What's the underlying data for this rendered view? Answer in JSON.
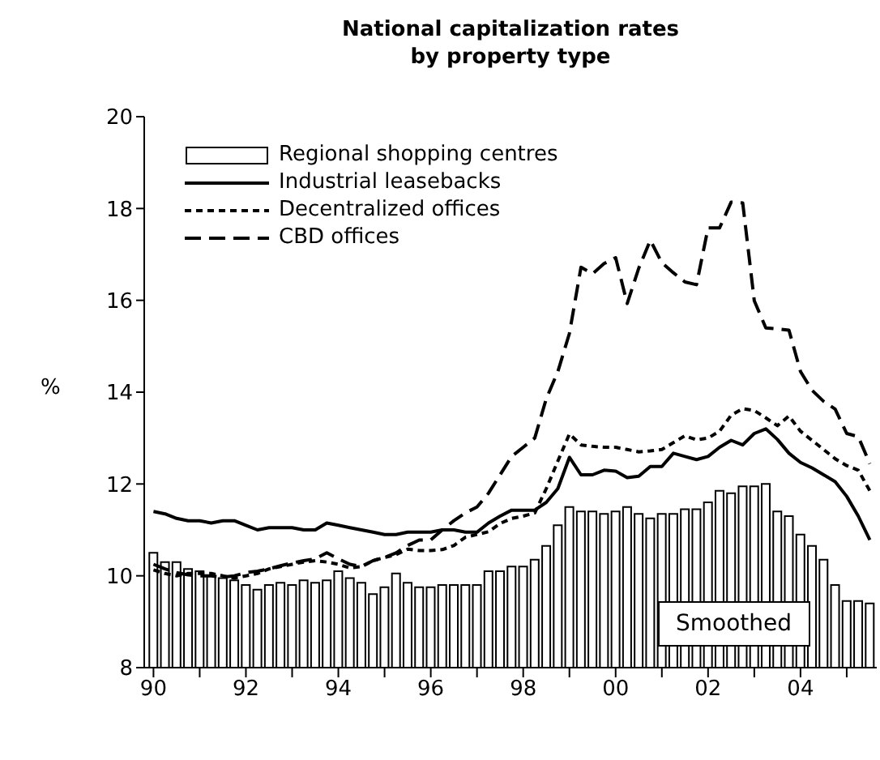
{
  "chart_data": {
    "type": "bar",
    "title": "National capitalization rates\nby property type",
    "ylabel": "%",
    "x": [
      1990,
      1990.25,
      1990.5,
      1990.75,
      1991,
      1991.25,
      1991.5,
      1991.75,
      1992,
      1992.25,
      1992.5,
      1992.75,
      1993,
      1993.25,
      1993.5,
      1993.75,
      1994,
      1994.25,
      1994.5,
      1994.75,
      1995,
      1995.25,
      1995.5,
      1995.75,
      1996,
      1996.25,
      1996.5,
      1996.75,
      1997,
      1997.25,
      1997.5,
      1997.75,
      1998,
      1998.25,
      1998.5,
      1998.75,
      1999,
      1999.25,
      1999.5,
      1999.75,
      2000,
      2000.25,
      2000.5,
      2000.75,
      2001,
      2001.25,
      2001.5,
      2001.75,
      2002,
      2002.25,
      2002.5,
      2002.75,
      2003,
      2003.25,
      2003.5,
      2003.75,
      2004,
      2004.25,
      2004.5,
      2004.75,
      2005,
      2005.25,
      2005.5
    ],
    "series": [
      {
        "name": "Regional shopping centres",
        "color": "#ffffff",
        "values": [
          10.5,
          10.3,
          10.3,
          10.15,
          10.1,
          10.0,
          9.95,
          9.9,
          9.8,
          9.7,
          9.8,
          9.85,
          9.8,
          9.9,
          9.85,
          9.9,
          10.1,
          9.95,
          9.85,
          9.6,
          9.75,
          10.05,
          9.85,
          9.75,
          9.75,
          9.8,
          9.8,
          9.8,
          9.8,
          10.1,
          10.1,
          10.2,
          10.2,
          10.35,
          10.65,
          11.1,
          11.5,
          11.4,
          11.4,
          11.35,
          11.4,
          11.5,
          11.35,
          11.25,
          11.35,
          11.35,
          11.45,
          11.45,
          11.6,
          11.85,
          11.8,
          11.95,
          11.95,
          12.0,
          11.4,
          11.3,
          10.9,
          10.65,
          10.35,
          9.8,
          9.45,
          9.45,
          9.4
        ]
      },
      {
        "name": "Industrial leasebacks",
        "type": "line",
        "color": "#000000",
        "line_style": "solid",
        "values": [
          11.4,
          11.35,
          11.25,
          11.2,
          11.2,
          11.15,
          11.2,
          11.2,
          11.1,
          11.0,
          11.05,
          11.05,
          11.05,
          11.0,
          11.0,
          11.15,
          11.1,
          11.05,
          11.0,
          10.95,
          10.9,
          10.9,
          10.95,
          10.95,
          10.95,
          11.0,
          11.0,
          10.95,
          10.95,
          11.15,
          11.3,
          11.43,
          11.43,
          11.43,
          11.6,
          11.9,
          12.58,
          12.2,
          12.2,
          12.3,
          12.28,
          12.14,
          12.17,
          12.38,
          12.38,
          12.67,
          12.6,
          12.53,
          12.6,
          12.8,
          12.95,
          12.85,
          13.1,
          13.2,
          12.97,
          12.67,
          12.47,
          12.35,
          12.2,
          12.05,
          11.73,
          11.3,
          10.78
        ]
      },
      {
        "name": "Decentralized offices",
        "type": "line",
        "color": "#000000",
        "line_style": "dotted",
        "values": [
          10.13,
          10.05,
          10.0,
          10.05,
          10.05,
          10.05,
          10.0,
          9.95,
          10.0,
          10.05,
          10.15,
          10.2,
          10.25,
          10.3,
          10.33,
          10.3,
          10.25,
          10.17,
          10.2,
          10.33,
          10.4,
          10.46,
          10.58,
          10.55,
          10.55,
          10.57,
          10.66,
          10.84,
          10.9,
          10.96,
          11.14,
          11.25,
          11.3,
          11.37,
          11.9,
          12.5,
          13.09,
          12.85,
          12.82,
          12.8,
          12.8,
          12.75,
          12.7,
          12.72,
          12.75,
          12.9,
          13.05,
          12.96,
          13.0,
          13.15,
          13.5,
          13.64,
          13.6,
          13.44,
          13.27,
          13.48,
          13.15,
          12.95,
          12.75,
          12.55,
          12.4,
          12.3,
          11.85
        ]
      },
      {
        "name": "CBD offices",
        "type": "line",
        "color": "#000000",
        "line_style": "dashed",
        "values": [
          10.25,
          10.15,
          10.07,
          10.02,
          10.0,
          10.0,
          9.97,
          10.0,
          10.07,
          10.1,
          10.15,
          10.22,
          10.28,
          10.33,
          10.37,
          10.5,
          10.37,
          10.25,
          10.2,
          10.33,
          10.4,
          10.5,
          10.66,
          10.78,
          10.78,
          11.0,
          11.2,
          11.37,
          11.5,
          11.8,
          12.2,
          12.6,
          12.8,
          13.0,
          13.86,
          14.45,
          15.28,
          16.72,
          16.58,
          16.8,
          16.93,
          15.93,
          16.7,
          17.31,
          16.82,
          16.6,
          16.4,
          16.34,
          17.58,
          17.58,
          18.14,
          18.12,
          15.99,
          15.4,
          15.38,
          15.35,
          14.45,
          14.04,
          13.8,
          13.63,
          13.1,
          13.03,
          12.44
        ]
      }
    ],
    "xlim": [
      1989.8,
      2005.65
    ],
    "xticks": [
      {
        "value": 1990,
        "label": "90"
      },
      {
        "value": 1991,
        "label": null
      },
      {
        "value": 1992,
        "label": "92"
      },
      {
        "value": 1993,
        "label": null
      },
      {
        "value": 1994,
        "label": "94"
      },
      {
        "value": 1995,
        "label": null
      },
      {
        "value": 1996,
        "label": "96"
      },
      {
        "value": 1997,
        "label": null
      },
      {
        "value": 1998,
        "label": "98"
      },
      {
        "value": 1999,
        "label": null
      },
      {
        "value": 2000,
        "label": "00"
      },
      {
        "value": 2001,
        "label": null
      },
      {
        "value": 2002,
        "label": "02"
      },
      {
        "value": 2003,
        "label": null
      },
      {
        "value": 2004,
        "label": "04"
      },
      {
        "value": 2005,
        "label": null
      }
    ],
    "ylim": [
      8,
      20
    ],
    "yticks": [
      8,
      10,
      12,
      14,
      16,
      18,
      20
    ],
    "grid": false,
    "legend": "top left",
    "annotations": [
      "Smoothed"
    ]
  }
}
